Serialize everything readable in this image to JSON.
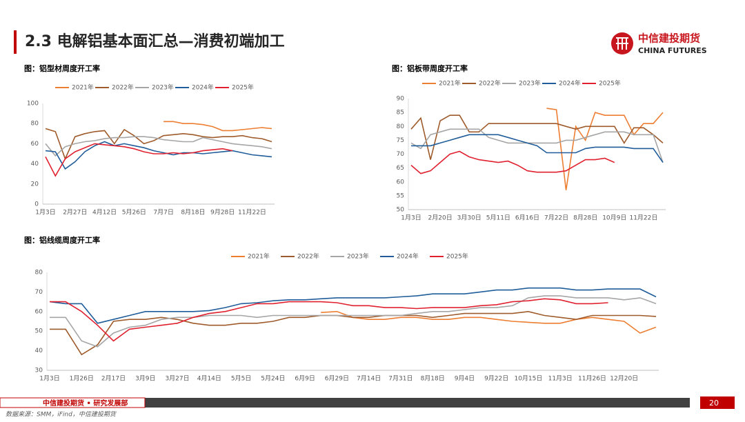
{
  "header": {
    "title": "2.3 电解铝基本面汇总—消费初端加工",
    "logo_cn": "中信建投期货",
    "logo_en": "CHINA FUTURES"
  },
  "footer": {
    "org": "中信建投期货 • 研究发展部",
    "page": "20",
    "source": "数据来源：SMM，iFind，中信建投期货"
  },
  "chart_data": [
    {
      "type": "line",
      "title": "图：铝型材周度开工率",
      "categories": [
        "1月3日",
        null,
        null,
        "2月27日",
        null,
        null,
        "4月12日",
        null,
        null,
        "5月26日",
        null,
        null,
        "7月7日",
        null,
        null,
        "8月18日",
        null,
        null,
        "9月28日",
        null,
        null,
        "11月22日",
        null,
        null
      ],
      "ylim": [
        0,
        100
      ],
      "yticks": [
        0,
        20,
        40,
        60,
        80,
        100
      ],
      "grid": false,
      "legend": "top",
      "series": [
        {
          "name": "2021年",
          "color": "#ED7D31",
          "values": [
            null,
            null,
            null,
            null,
            null,
            null,
            null,
            null,
            null,
            null,
            null,
            null,
            82,
            82,
            80,
            80,
            79,
            77,
            73,
            73,
            74,
            75,
            76,
            75
          ]
        },
        {
          "name": "2022年",
          "color": "#9E5A2A",
          "values": [
            75,
            72,
            45,
            67,
            70,
            72,
            73,
            60,
            74,
            68,
            60,
            63,
            68,
            69,
            70,
            69,
            67,
            66,
            67,
            67,
            68,
            66,
            65,
            62
          ]
        },
        {
          "name": "2023年",
          "color": "#A5A5A5",
          "values": [
            60,
            48,
            57,
            60,
            62,
            63,
            65,
            66,
            66,
            67,
            67,
            66,
            64,
            63,
            62,
            62,
            66,
            64,
            62,
            60,
            59,
            58,
            57,
            55
          ]
        },
        {
          "name": "2024年",
          "color": "#1F5C99",
          "values": [
            53,
            52,
            35,
            42,
            52,
            58,
            62,
            58,
            60,
            58,
            56,
            53,
            51,
            49,
            51,
            51,
            50,
            51,
            52,
            53,
            51,
            49,
            48,
            47
          ]
        },
        {
          "name": "2025年",
          "color": "#E0202E",
          "values": [
            47,
            28,
            45,
            52,
            56,
            60,
            59,
            58,
            57,
            55,
            52,
            50,
            50,
            51,
            50,
            51,
            53,
            54,
            55,
            53,
            null,
            null,
            null,
            null
          ]
        }
      ]
    },
    {
      "type": "line",
      "title": "图：铝板带周度开工率",
      "categories": [
        "1月3日",
        null,
        null,
        "2月20日",
        null,
        null,
        "3月30日",
        null,
        null,
        "5月11日",
        null,
        null,
        "6月16日",
        null,
        null,
        "7月22日",
        null,
        null,
        "8月28日",
        null,
        null,
        "10月9日",
        null,
        null,
        "11月22日",
        null,
        null
      ],
      "ylim": [
        50,
        90
      ],
      "yticks": [
        50,
        55,
        60,
        65,
        70,
        75,
        80,
        85,
        90
      ],
      "grid": false,
      "legend": "top",
      "series": [
        {
          "name": "2021年",
          "color": "#ED7D31",
          "values": [
            null,
            null,
            null,
            null,
            null,
            null,
            null,
            null,
            null,
            null,
            null,
            null,
            null,
            null,
            86.5,
            86,
            57,
            80,
            75,
            85,
            84,
            84,
            84,
            77,
            81,
            81,
            85
          ]
        },
        {
          "name": "2022年",
          "color": "#9E5A2A",
          "values": [
            79,
            83,
            68,
            82,
            84,
            84,
            78,
            78,
            81,
            81,
            81,
            81,
            81,
            81,
            81,
            81,
            80,
            79,
            80,
            80,
            80,
            80,
            74,
            79.5,
            79.5,
            77,
            74
          ]
        },
        {
          "name": "2023年",
          "color": "#A5A5A5",
          "values": [
            74,
            72,
            77,
            78,
            79,
            79,
            79,
            79,
            76,
            75,
            74,
            74,
            74,
            74,
            74,
            74,
            75,
            75,
            76,
            77,
            78,
            78,
            78,
            77,
            77,
            77,
            67
          ]
        },
        {
          "name": "2024年",
          "color": "#1F5C99",
          "values": [
            73,
            73,
            73,
            74,
            75,
            76,
            77,
            77,
            77,
            77,
            76,
            75,
            74,
            73,
            70.5,
            70.5,
            70.5,
            70.5,
            72,
            72.5,
            72.5,
            72.5,
            72.5,
            72,
            72,
            72,
            67
          ]
        },
        {
          "name": "2025年",
          "color": "#E0202E",
          "values": [
            66,
            63,
            64,
            67,
            70,
            71,
            69,
            68,
            67.5,
            67,
            67.5,
            66,
            64,
            63.5,
            63.5,
            63.5,
            64,
            66,
            68,
            68,
            68.5,
            67,
            null,
            null,
            null,
            null,
            null
          ]
        }
      ]
    },
    {
      "type": "line",
      "title": "图：铝线缆周度开工率",
      "categories": [
        "1月3日",
        null,
        "1月26日",
        null,
        "2月17日",
        null,
        "3月9日",
        null,
        "3月27日",
        null,
        "4月14日",
        null,
        "5月5日",
        null,
        "5月24日",
        null,
        "6月9日",
        null,
        "6月29日",
        null,
        "7月14日",
        null,
        "7月31日",
        null,
        "8月18日",
        null,
        "9月4日",
        null,
        "9月22日",
        null,
        "10月15日",
        null,
        "11月3日",
        null,
        "11月26日",
        null,
        "12月20日",
        null,
        null
      ],
      "ylim": [
        30,
        80
      ],
      "yticks": [
        30,
        40,
        50,
        60,
        70,
        80
      ],
      "grid": false,
      "legend": "top",
      "series": [
        {
          "name": "2021年",
          "color": "#ED7D31",
          "values": [
            null,
            null,
            null,
            null,
            null,
            null,
            null,
            null,
            null,
            null,
            null,
            null,
            null,
            null,
            null,
            null,
            null,
            59.5,
            60,
            57,
            56,
            56,
            57,
            57,
            56,
            56,
            57,
            57,
            56,
            55,
            54.5,
            54,
            54,
            56,
            57,
            56,
            55,
            49,
            52
          ]
        },
        {
          "name": "2022年",
          "color": "#9E5A2A",
          "values": [
            51,
            51,
            38,
            43,
            55,
            56,
            56,
            57,
            56,
            54,
            53,
            53,
            54,
            54,
            55,
            57,
            57,
            58,
            58,
            57,
            57,
            58,
            58,
            58,
            57,
            58,
            59,
            59,
            59,
            59,
            60,
            58,
            57,
            56,
            58,
            58,
            58,
            58,
            57.5
          ]
        },
        {
          "name": "2023年",
          "color": "#A5A5A5",
          "values": [
            57,
            57,
            45,
            42,
            49,
            52,
            53,
            56,
            57,
            57,
            58,
            58,
            58,
            57,
            58,
            58,
            58,
            58,
            58,
            58,
            58,
            58,
            58,
            59,
            60,
            60,
            61,
            62,
            62,
            63,
            67,
            68,
            68,
            67,
            67,
            67,
            66,
            67,
            64
          ]
        },
        {
          "name": "2024年",
          "color": "#1F5C99",
          "values": [
            65,
            64,
            64,
            54,
            56,
            58,
            60,
            60,
            60,
            60,
            60.5,
            62,
            64,
            64.5,
            65.5,
            66,
            66,
            66.5,
            67,
            67,
            67,
            67,
            67.5,
            68,
            69,
            69,
            69,
            70,
            71,
            71,
            72,
            72,
            72,
            71,
            71,
            71.5,
            71.5,
            71.5,
            67.5
          ]
        },
        {
          "name": "2025年",
          "color": "#E0202E",
          "values": [
            65,
            65,
            60,
            53,
            45,
            51,
            52,
            53,
            54,
            57,
            59,
            60,
            62,
            64,
            64,
            65,
            65,
            65,
            64.5,
            63,
            63,
            62,
            62,
            61.5,
            62,
            62,
            62,
            63,
            63.5,
            65,
            65.5,
            66.5,
            66,
            64,
            64,
            64.5,
            null,
            null,
            null
          ]
        }
      ]
    }
  ]
}
